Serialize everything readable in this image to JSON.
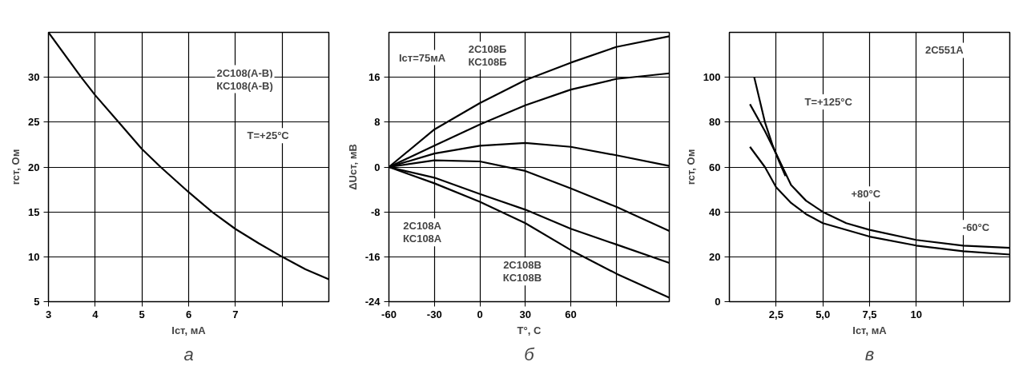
{
  "chart_data": [
    {
      "type": "line",
      "title": "а",
      "xlabel": "Iст, мА",
      "ylabel": "rст, Ом",
      "grid": true,
      "xlim": [
        3,
        9
      ],
      "xticks": [
        3,
        4,
        5,
        6,
        7,
        {
          "value": 8,
          "label": null
        }
      ],
      "ylim": [
        5,
        35
      ],
      "yticks": [
        5,
        10,
        15,
        20,
        25,
        30
      ],
      "x": [
        3,
        3.7,
        4,
        4.5,
        5,
        5.4,
        6,
        6.5,
        7,
        7.5,
        8,
        8.5,
        9
      ],
      "series": [
        {
          "color": "#000000",
          "values": [
            35,
            30,
            28,
            25,
            22,
            20,
            17.2,
            15,
            13.1,
            11.5,
            10,
            8.6,
            7.5
          ]
        }
      ],
      "annotations": [
        "2С108(А-В)\nКС108(А-В)",
        "T=+25°C"
      ]
    },
    {
      "type": "line",
      "title": "б",
      "xlabel": "T°, C",
      "ylabel": "ΔUст, мВ",
      "grid": true,
      "xlim": [
        -60,
        125
      ],
      "xticks": [
        -60,
        -30,
        0,
        30,
        60,
        {
          "value": 90,
          "label": null
        }
      ],
      "ylim": [
        -24,
        24
      ],
      "yticks": [
        -24,
        -16,
        -8,
        0,
        8,
        16
      ],
      "x": [
        -60,
        -30,
        0,
        30,
        60,
        90,
        125
      ],
      "series": [
        {
          "color": "#000000",
          "values": [
            0,
            6.7,
            11.4,
            15.5,
            18.6,
            21.4,
            23.3
          ]
        },
        {
          "color": "#000000",
          "values": [
            0,
            3.8,
            7.6,
            11,
            13.8,
            15.7,
            16.7
          ]
        },
        {
          "color": "#000000",
          "values": [
            0,
            2.4,
            3.8,
            4.3,
            3.6,
            2.1,
            0.2
          ]
        },
        {
          "color": "#000000",
          "values": [
            0,
            1.2,
            1.0,
            -0.7,
            -3.8,
            -7.1,
            -11.4
          ]
        },
        {
          "color": "#000000",
          "values": [
            0,
            -1.9,
            -4.8,
            -7.6,
            -11,
            -13.8,
            -17.1
          ]
        },
        {
          "color": "#000000",
          "values": [
            0,
            -2.9,
            -6.2,
            -10,
            -14.8,
            -19,
            -23.3
          ]
        }
      ],
      "annotations": [
        "Iст=75мА",
        "2С108Б\nКС108Б",
        "2С108А\nКС108А",
        "2С108В\nКС108В"
      ]
    },
    {
      "type": "line",
      "title": "в",
      "xlabel": "Iст, мА",
      "ylabel": "rст, Ом",
      "grid": true,
      "xlim": [
        0,
        15
      ],
      "xticks": [
        {
          "value": 2.5,
          "label": "2,5"
        },
        {
          "value": 5,
          "label": "5,0"
        },
        {
          "value": 7.5,
          "label": "7,5"
        },
        10,
        {
          "value": 12.5,
          "label": null
        }
      ],
      "ylim": [
        0,
        120
      ],
      "yticks": [
        0,
        20,
        40,
        60,
        80,
        100
      ],
      "series": [
        {
          "color": "#000000",
          "x": [
            1.33,
            1.9,
            2.3,
            2.66,
            3.0
          ],
          "values": [
            100,
            80,
            70,
            62.5,
            56
          ]
        },
        {
          "color": "#000000",
          "x": [
            1.1,
            1.9,
            2.5,
            3.3,
            4.1,
            5,
            6.25,
            7.5,
            10,
            12.5,
            15
          ],
          "values": [
            88,
            76,
            66,
            52,
            45,
            40,
            35,
            32,
            27.5,
            25,
            24
          ]
        },
        {
          "color": "#000000",
          "x": [
            1.1,
            1.9,
            2.5,
            3.3,
            4.1,
            5,
            7.5,
            10,
            12.5,
            15
          ],
          "values": [
            69,
            60,
            51,
            44,
            39,
            35,
            29,
            25,
            22.5,
            21
          ]
        }
      ],
      "annotations": [
        "2С551А",
        "T=+125°C",
        "+80°C",
        "-60°C"
      ]
    }
  ]
}
